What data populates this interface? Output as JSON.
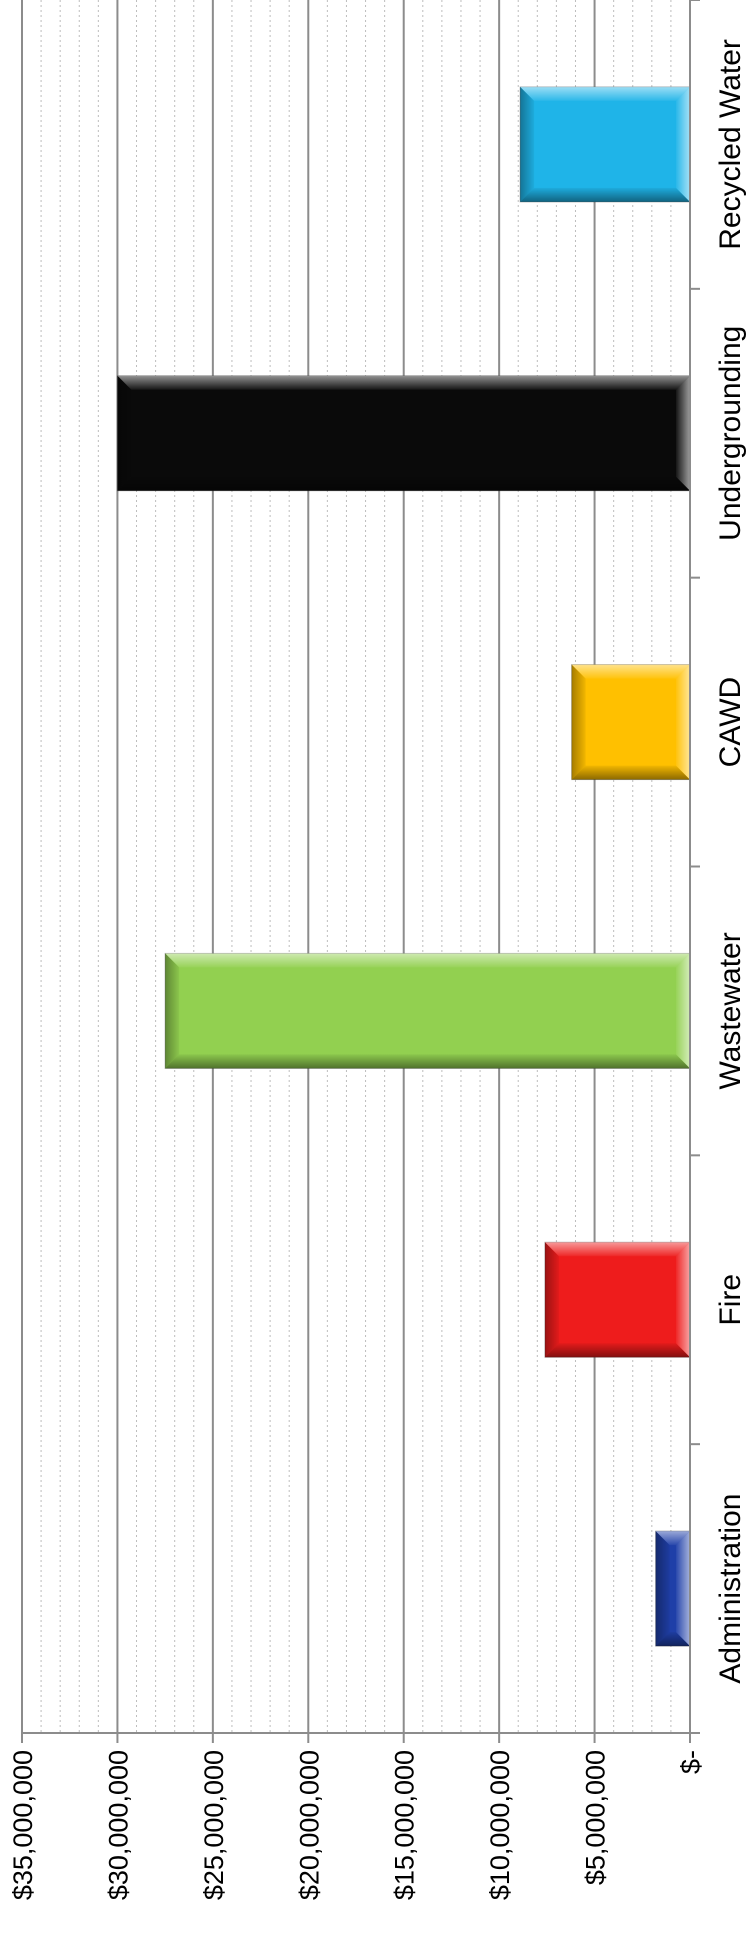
{
  "chart_data": {
    "type": "bar",
    "orientation": "horizontal (figure rotated 90° clockwise)",
    "categories": [
      "Administration",
      "Fire",
      "Wastewater",
      "CAWD",
      "Undergrounding",
      "Recycled Water"
    ],
    "values": [
      1800000,
      7600000,
      27500000,
      6200000,
      30000000,
      8900000
    ],
    "colors": [
      "#1f3fa8",
      "#ee1c1c",
      "#92d050",
      "#ffc000",
      "#0a0a0a",
      "#1fb4e8"
    ],
    "value_axis": {
      "range": [
        0,
        35000000
      ],
      "major_step": 5000000,
      "minor_step": 1000000,
      "tick_labels": [
        "$-",
        "$5,000,000",
        "$10,000,000",
        "$15,000,000",
        "$20,000,000",
        "$25,000,000",
        "$30,000,000",
        "$35,000,000"
      ]
    },
    "title": "",
    "xlabel": "",
    "ylabel": "",
    "grid": true,
    "legend": "none"
  }
}
